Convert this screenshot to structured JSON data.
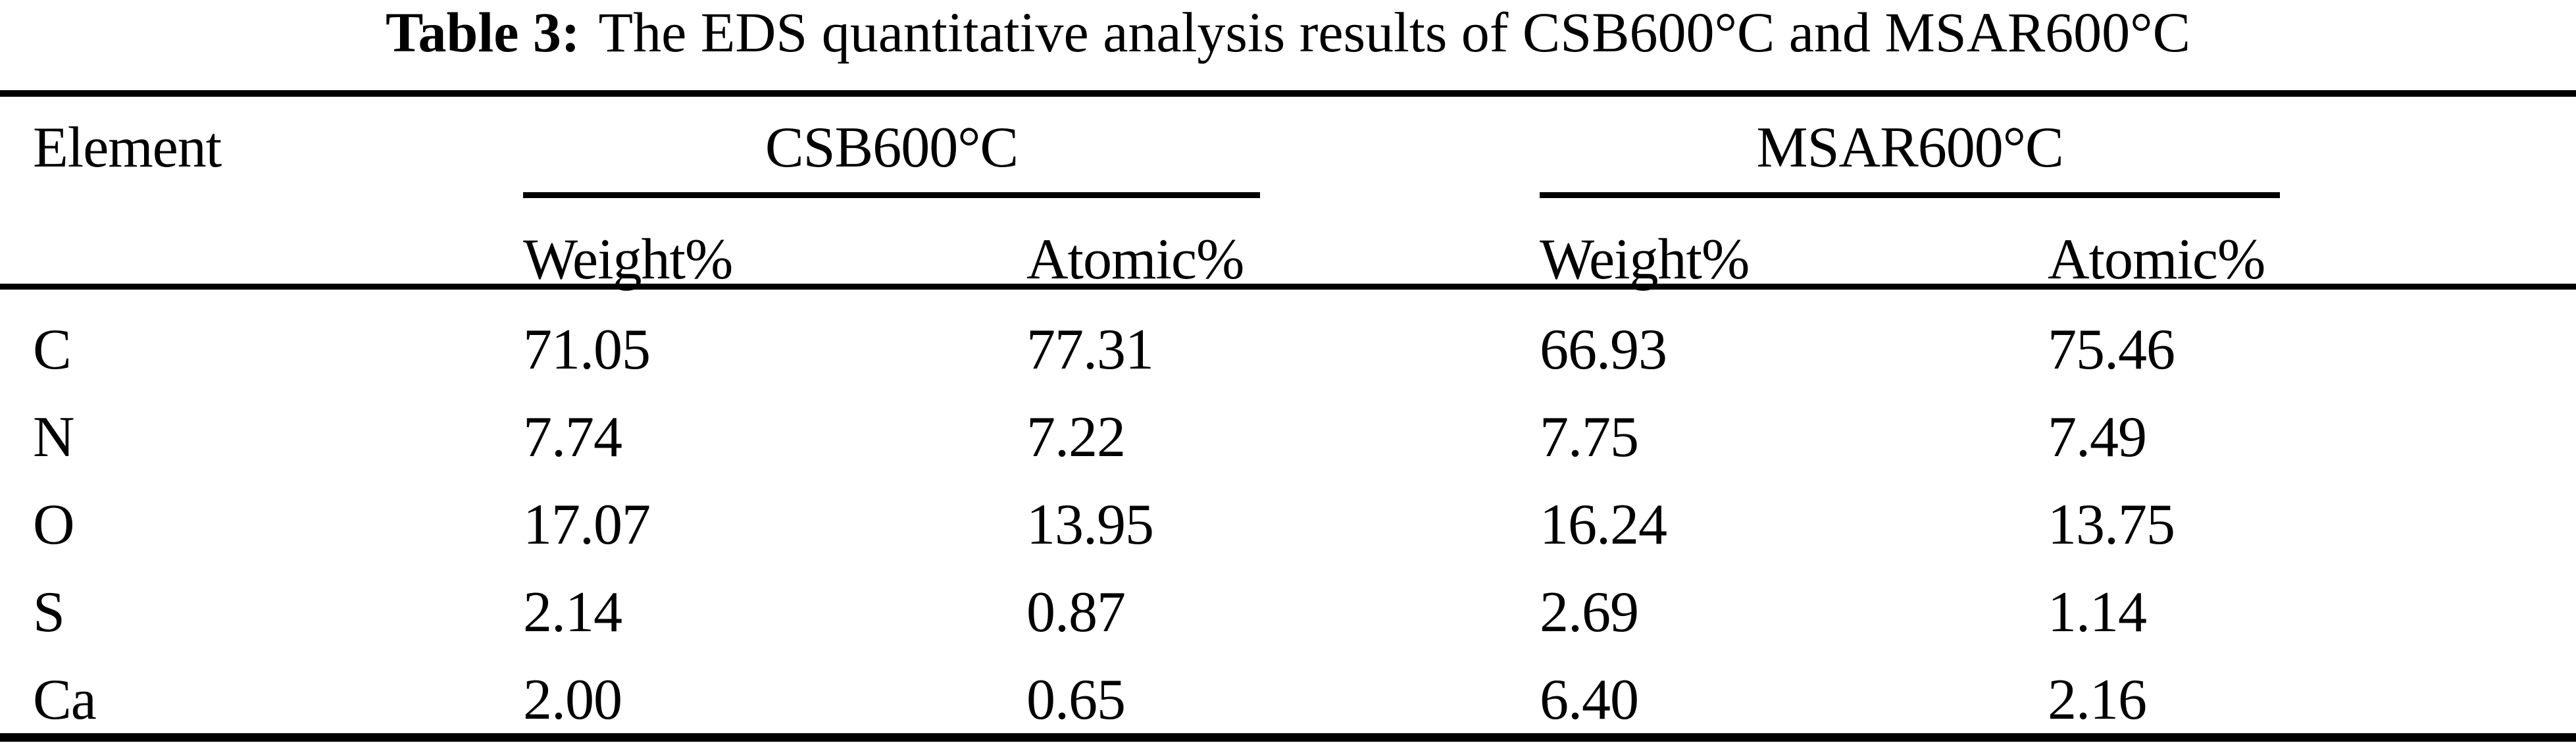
{
  "title": {
    "label": "Table 3:",
    "text": "The EDS quantitative analysis results of CSB600°C and MSAR600°C"
  },
  "table": {
    "corner_header": "Element",
    "groups": [
      {
        "label": "CSB600°C",
        "columns": [
          "Weight%",
          "Atomic%"
        ]
      },
      {
        "label": "MSAR600°C",
        "columns": [
          "Weight%",
          "Atomic%"
        ]
      }
    ],
    "rows": [
      {
        "element": "C",
        "csb_weight": "71.05",
        "csb_atomic": "77.31",
        "msar_weight": "66.93",
        "msar_atomic": "75.46"
      },
      {
        "element": "N",
        "csb_weight": "7.74",
        "csb_atomic": "7.22",
        "msar_weight": "7.75",
        "msar_atomic": "7.49"
      },
      {
        "element": "O",
        "csb_weight": "17.07",
        "csb_atomic": "13.95",
        "msar_weight": "16.24",
        "msar_atomic": "13.75"
      },
      {
        "element": "S",
        "csb_weight": "2.14",
        "csb_atomic": "0.87",
        "msar_weight": "2.69",
        "msar_atomic": "1.14"
      },
      {
        "element": "Ca",
        "csb_weight": "2.00",
        "csb_atomic": "0.65",
        "msar_weight": "6.40",
        "msar_atomic": "2.16"
      }
    ]
  },
  "chart_data": {
    "type": "table",
    "title": "Table 3: The EDS quantitative analysis results of CSB600°C and MSAR600°C",
    "row_header": "Element",
    "column_groups": [
      "CSB600°C",
      "MSAR600°C"
    ],
    "columns": [
      "CSB600°C Weight%",
      "CSB600°C Atomic%",
      "MSAR600°C Weight%",
      "MSAR600°C Atomic%"
    ],
    "elements": [
      "C",
      "N",
      "O",
      "S",
      "Ca"
    ],
    "values": [
      [
        71.05,
        77.31,
        66.93,
        75.46
      ],
      [
        7.74,
        7.22,
        7.75,
        7.49
      ],
      [
        17.07,
        13.95,
        16.24,
        13.75
      ],
      [
        2.14,
        0.87,
        2.69,
        1.14
      ],
      [
        2.0,
        0.65,
        6.4,
        2.16
      ]
    ]
  }
}
